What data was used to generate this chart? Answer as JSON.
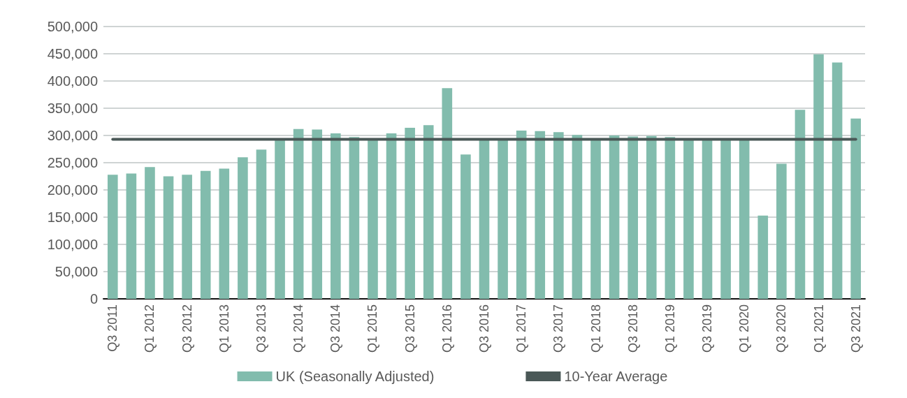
{
  "chart_data": {
    "type": "bar",
    "categories": [
      "Q3 2011",
      null,
      "Q1 2012",
      null,
      "Q3 2012",
      null,
      "Q1 2013",
      null,
      "Q3 2013",
      null,
      "Q1 2014",
      null,
      "Q3 2014",
      null,
      "Q1 2015",
      null,
      "Q3 2015",
      null,
      "Q1 2016",
      null,
      "Q3 2016",
      null,
      "Q1 2017",
      null,
      "Q3 2017",
      null,
      "Q1 2018",
      null,
      "Q3 2018",
      null,
      "Q1 2019",
      null,
      "Q3 2019",
      null,
      "Q1 2020",
      null,
      "Q3 2020",
      null,
      "Q1 2021",
      null,
      "Q3 2021"
    ],
    "series": [
      {
        "name": "UK (Seasonally Adjusted)",
        "color": "#82bcad",
        "values": [
          228000,
          230000,
          242000,
          225000,
          228000,
          235000,
          239000,
          260000,
          274000,
          292000,
          312000,
          311000,
          304000,
          297000,
          294000,
          304000,
          314000,
          319000,
          387000,
          265000,
          293000,
          294000,
          309000,
          308000,
          306000,
          301000,
          294000,
          300000,
          298000,
          299000,
          297000,
          293000,
          293000,
          293000,
          293000,
          153000,
          248000,
          347000,
          449000,
          434000,
          331000
        ]
      },
      {
        "name": "10-Year Average",
        "type": "line",
        "color": "#4a5857",
        "values": [
          293000,
          293000,
          293000,
          293000,
          293000,
          293000,
          293000,
          293000,
          293000,
          293000,
          293000,
          293000,
          293000,
          293000,
          293000,
          293000,
          293000,
          293000,
          293000,
          293000,
          293000,
          293000,
          293000,
          293000,
          293000,
          293000,
          293000,
          293000,
          293000,
          293000,
          293000,
          293000,
          293000,
          293000,
          293000,
          293000,
          293000,
          293000,
          293000,
          293000,
          293000
        ]
      }
    ],
    "ylim": [
      0,
      500000
    ],
    "yticks": [
      0,
      {
        "value": 50000,
        "label": "50,000"
      },
      {
        "value": 100000,
        "label": "100,000"
      },
      {
        "value": 150000,
        "label": "150,000"
      },
      {
        "value": 200000,
        "label": "200,000"
      },
      {
        "value": 250000,
        "label": "250,000"
      },
      {
        "value": 300000,
        "label": "300,000"
      },
      {
        "value": 350000,
        "label": "350,000"
      },
      {
        "value": 400000,
        "label": "400,000"
      },
      {
        "value": 450000,
        "label": "450,000"
      },
      {
        "value": 500000,
        "label": "500,000"
      }
    ],
    "grid": "y",
    "legend": "bottom",
    "marker": "none",
    "line_style": "solid"
  }
}
